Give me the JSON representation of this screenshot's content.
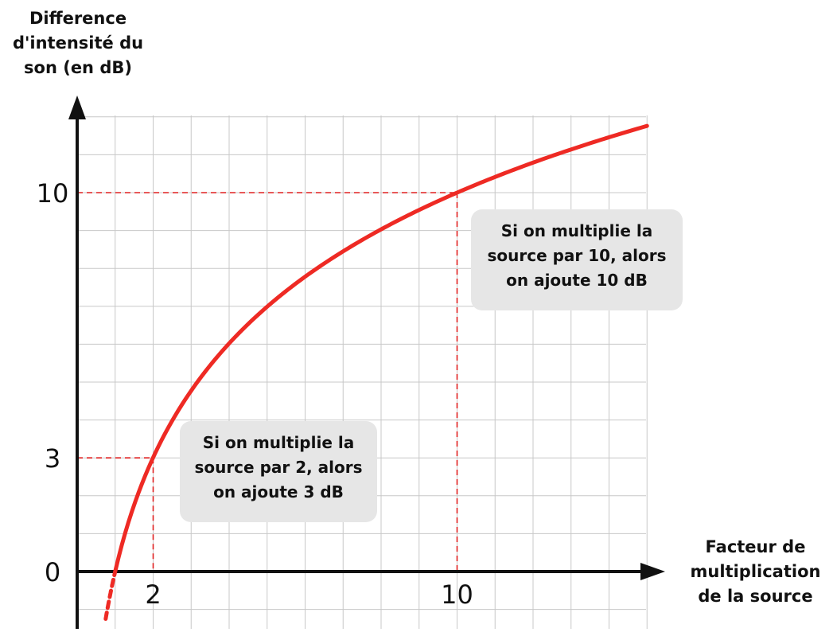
{
  "chart_data": {
    "type": "line",
    "ylabel_lines": [
      "Difference",
      "d'intensité du",
      "son (en dB)"
    ],
    "xlabel_lines": [
      "Facteur de",
      "multiplication",
      "de la source"
    ],
    "xlim": [
      0,
      15
    ],
    "ylim": [
      -1.5,
      12.5
    ],
    "x_ticks": [
      {
        "value": 2,
        "label": "2"
      },
      {
        "value": 10,
        "label": "10"
      }
    ],
    "y_ticks": [
      {
        "value": 0,
        "label": "0"
      },
      {
        "value": 3,
        "label": "3"
      },
      {
        "value": 10,
        "label": "10"
      }
    ],
    "series": [
      {
        "function": "10*log10(x)",
        "x_start": 0.75,
        "x_end": 15,
        "solid_from": 1,
        "color": "#ee2a24"
      }
    ],
    "reference_points": [
      {
        "x": 2,
        "y": 3,
        "color": "#e02020"
      },
      {
        "x": 10,
        "y": 10,
        "color": "#e02020"
      }
    ],
    "grid": true,
    "annotations": [
      {
        "id": "annot-10",
        "lines": [
          "Si on multiplie la",
          "source par 10, alors",
          "on ajoute 10 dB"
        ]
      },
      {
        "id": "annot-2",
        "lines": [
          "Si on multiplie la",
          "source par 2, alors",
          "on ajoute 3 dB"
        ]
      }
    ]
  }
}
